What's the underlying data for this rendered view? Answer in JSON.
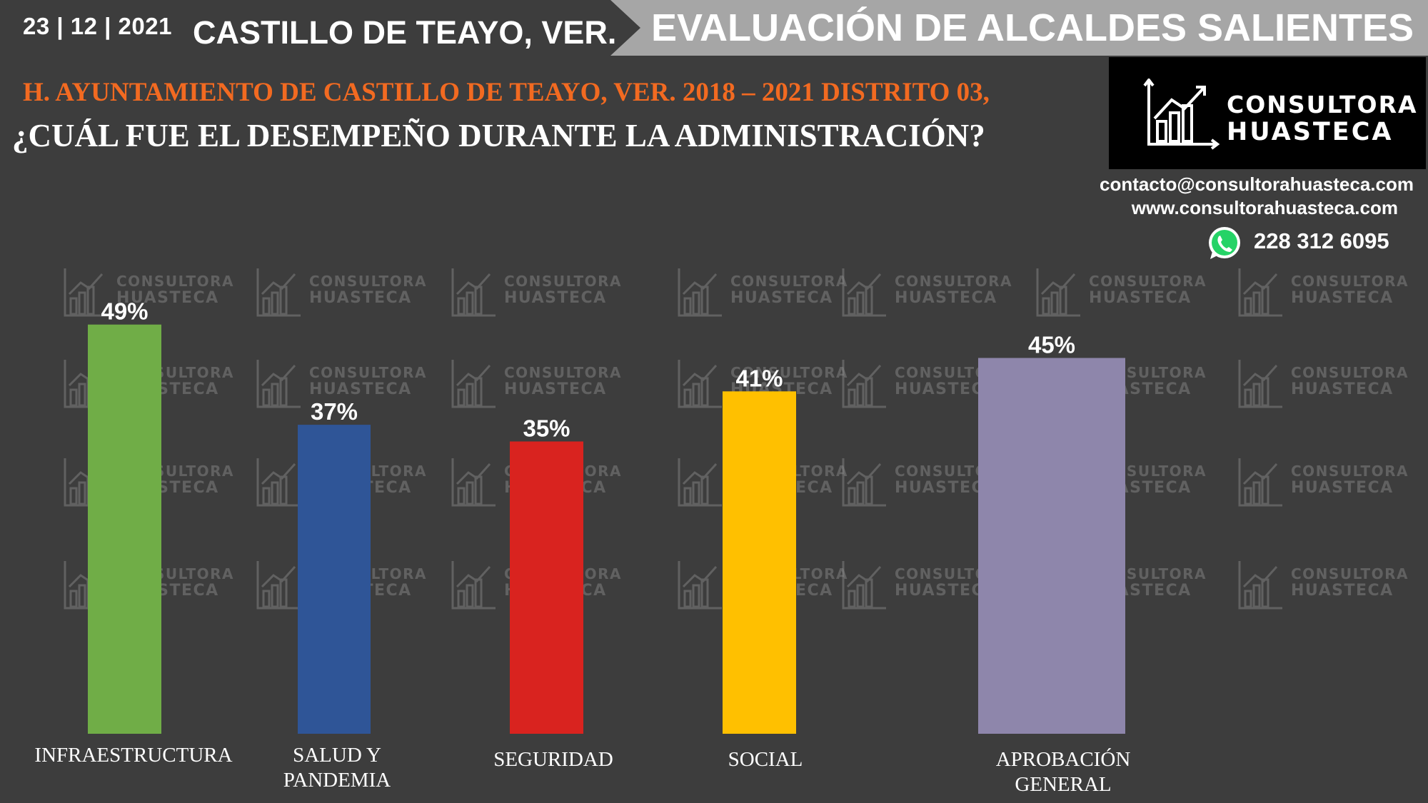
{
  "header": {
    "date": "23 | 12 | 2021",
    "city": "CASTILLO DE TEAYO, VER.",
    "banner": "EVALUACIÓN DE ALCALDES SALIENTES"
  },
  "subtitle": "H. AYUNTAMIENTO DE CASTILLO DE TEAYO, VER. 2018 – 2021 DISTRITO 03,",
  "question": "¿CUÁL FUE EL DESEMPEÑO DURANTE LA ADMINISTRACIÓN?",
  "brand": {
    "line1": "CONSULTORA",
    "line2": "HUASTECA",
    "email": "contacto@consultorahuasteca.com",
    "web": "www.consultorahuasteca.com",
    "phone": "228 312 6095",
    "icon": "whatsapp-icon"
  },
  "colors": {
    "background": "#3d3d3d",
    "banner": "#a6a6a6",
    "subtitle": "#f26a21"
  },
  "chart_data": {
    "type": "bar",
    "categories": [
      "INFRAESTRUCTURA",
      "SALUD Y PANDEMIA",
      "SEGURIDAD",
      "SOCIAL",
      "APROBACIÓN GENERAL"
    ],
    "category_lines": [
      [
        "INFRAESTRUCTURA"
      ],
      [
        "SALUD Y",
        "PANDEMIA"
      ],
      [
        "SEGURIDAD"
      ],
      [
        "SOCIAL"
      ],
      [
        "APROBACIÓN",
        "GENERAL"
      ]
    ],
    "values": [
      49,
      37,
      35,
      41,
      45
    ],
    "value_labels": [
      "49%",
      "37%",
      "35%",
      "41%",
      "45%"
    ],
    "colors": [
      "#70ad47",
      "#2f5597",
      "#d9231f",
      "#ffc000",
      "#8e86ab"
    ],
    "unit": "%",
    "grid": false,
    "legend": "none"
  }
}
